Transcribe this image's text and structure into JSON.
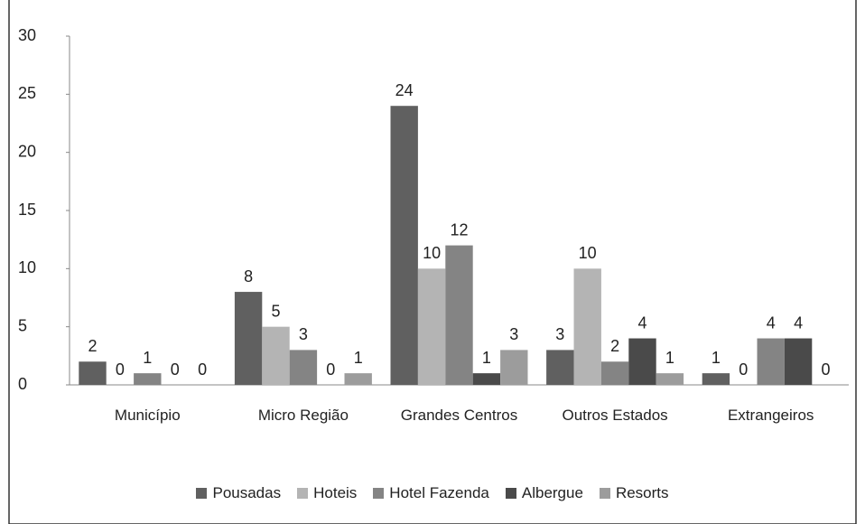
{
  "chart_data": {
    "type": "bar",
    "categories": [
      "Município",
      "Micro Região",
      "Grandes Centros",
      "Outros Estados",
      "Extrangeiros"
    ],
    "series": [
      {
        "name": "Pousadas",
        "color": "#606060",
        "values": [
          2,
          8,
          24,
          3,
          1
        ]
      },
      {
        "name": "Hoteis",
        "color": "#b4b4b4",
        "values": [
          0,
          5,
          10,
          10,
          0
        ]
      },
      {
        "name": "Hotel Fazenda",
        "color": "#848484",
        "values": [
          1,
          3,
          12,
          2,
          4
        ]
      },
      {
        "name": "Albergue",
        "color": "#4a4a4a",
        "values": [
          0,
          0,
          1,
          4,
          4
        ]
      },
      {
        "name": "Resorts",
        "color": "#9c9c9c",
        "values": [
          0,
          1,
          3,
          1,
          0
        ]
      }
    ],
    "ylim": [
      0,
      30
    ],
    "yticks": [
      0,
      5,
      10,
      15,
      20,
      25,
      30
    ],
    "grid": false,
    "legend": "bottom"
  }
}
